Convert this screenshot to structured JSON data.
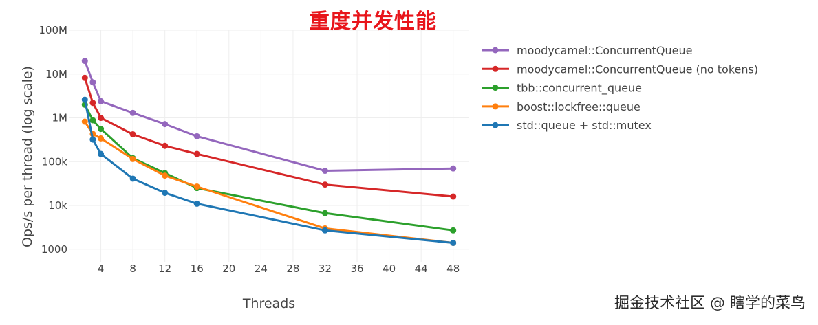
{
  "chart_data": {
    "type": "line",
    "title": "重度并发性能",
    "xlabel": "Threads",
    "ylabel": "Ops/s per thread (log scale)",
    "x_scale": "linear",
    "y_scale": "log",
    "xlim": [
      0,
      50
    ],
    "ylim": [
      500,
      100000000
    ],
    "x_ticks": [
      4,
      8,
      12,
      16,
      20,
      24,
      28,
      32,
      36,
      40,
      44,
      48
    ],
    "y_ticks": [
      {
        "value": 1000,
        "label": "1000"
      },
      {
        "value": 10000,
        "label": "10k"
      },
      {
        "value": 100000,
        "label": "100k"
      },
      {
        "value": 1000000,
        "label": "1M"
      },
      {
        "value": 10000000,
        "label": "10M"
      },
      {
        "value": 100000000,
        "label": "100M"
      }
    ],
    "grid": true,
    "legend_position": "right",
    "x": [
      2,
      3,
      4,
      8,
      12,
      16,
      32,
      48
    ],
    "series": [
      {
        "name": "moodycamel::ConcurrentQueue",
        "color": "#9467bd",
        "values": [
          20000000,
          6500000,
          2400000,
          1300000,
          720000,
          380000,
          62000,
          70000
        ]
      },
      {
        "name": "moodycamel::ConcurrentQueue (no tokens)",
        "color": "#d62728",
        "values": [
          8200000,
          2200000,
          1000000,
          420000,
          230000,
          150000,
          30000,
          16000
        ]
      },
      {
        "name": "tbb::concurrent_queue",
        "color": "#2ca02c",
        "values": [
          2000000,
          880000,
          560000,
          120000,
          55000,
          25000,
          6700,
          2700
        ]
      },
      {
        "name": "boost::lockfree::queue",
        "color": "#ff7f0e",
        "values": [
          820000,
          430000,
          340000,
          115000,
          48000,
          27000,
          3000,
          1400
        ]
      },
      {
        "name": "std::queue + std::mutex",
        "color": "#1f77b4",
        "values": [
          2600000,
          320000,
          150000,
          41000,
          19500,
          11000,
          2700,
          1400
        ]
      }
    ]
  },
  "watermark": "掘金技术社区 @ 瞎学的菜鸟"
}
